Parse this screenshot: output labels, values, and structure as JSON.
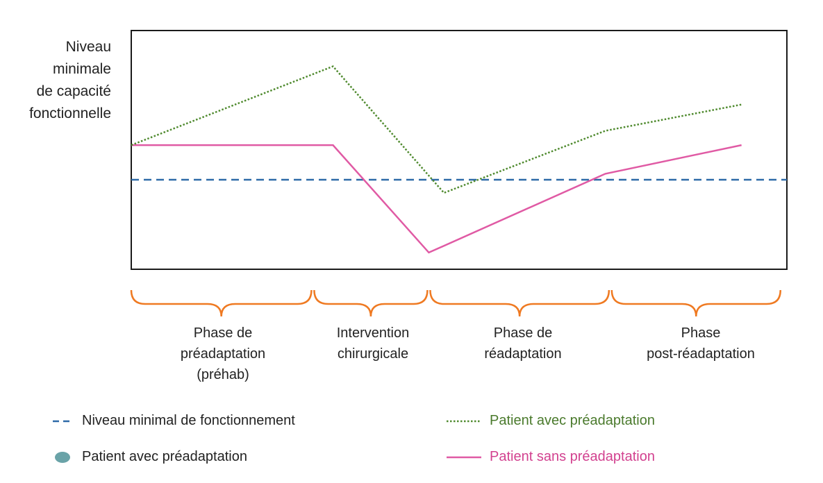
{
  "colors": {
    "green": "#4f8a2e",
    "pink": "#e05aa4",
    "blue": "#2e6aa8",
    "orange": "#ef7a22",
    "teal": "#6aa3a8"
  },
  "chart_data": {
    "type": "line",
    "title": "",
    "ylabel_lines": [
      "Niveau",
      "minimale",
      "de capacité",
      "fonctionnelle"
    ],
    "xlabel": "",
    "x": [
      0,
      1,
      2,
      3,
      4,
      5,
      6
    ],
    "xlim": [
      0,
      6.5
    ],
    "ylim": [
      0,
      100
    ],
    "grid": false,
    "series": [
      {
        "name": "Patient avec préadaptation",
        "style": "dotted",
        "color": "#4f8a2e",
        "points": [
          [
            0,
            52
          ],
          [
            2,
            85
          ],
          [
            3.1,
            32
          ],
          [
            4.7,
            58
          ],
          [
            6.05,
            69
          ]
        ]
      },
      {
        "name": "Patient sans préadaptation",
        "style": "solid",
        "color": "#e05aa4",
        "points": [
          [
            0,
            52
          ],
          [
            2,
            52
          ],
          [
            2.95,
            7
          ],
          [
            4.7,
            40
          ],
          [
            6.05,
            52
          ]
        ]
      },
      {
        "name": "Niveau minimal de fonctionnement",
        "style": "dashed",
        "color": "#2e6aa8",
        "points": [
          [
            0,
            37.5
          ],
          [
            6.5,
            37.5
          ]
        ]
      }
    ],
    "phases": [
      {
        "lines": [
          "Phase de",
          "préadaptation",
          "(préhab)"
        ],
        "from": 0,
        "to": 1.8
      },
      {
        "lines": [
          "Intervention",
          "chirurgicale"
        ],
        "from": 1.8,
        "to": 2.95
      },
      {
        "lines": [
          "Phase de",
          "réadaptation"
        ],
        "from": 2.95,
        "to": 4.75
      },
      {
        "lines": [
          "Phase",
          "post-réadaptation"
        ],
        "from": 4.75,
        "to": 6.45
      }
    ],
    "legend": [
      {
        "label": "Niveau minimal de fonctionnement",
        "marker": "dashed-line",
        "color": "#2e6aa8"
      },
      {
        "label": "Patient avec préadaptation",
        "marker": "dotted-line",
        "color": "#4f8a2e"
      },
      {
        "label": "Patient avec préadaptation",
        "marker": "circle",
        "color": "#6aa3a8"
      },
      {
        "label": "Patient sans préadaptation",
        "marker": "solid-line",
        "color": "#e05aa4"
      }
    ],
    "legend_position": "bottom"
  }
}
